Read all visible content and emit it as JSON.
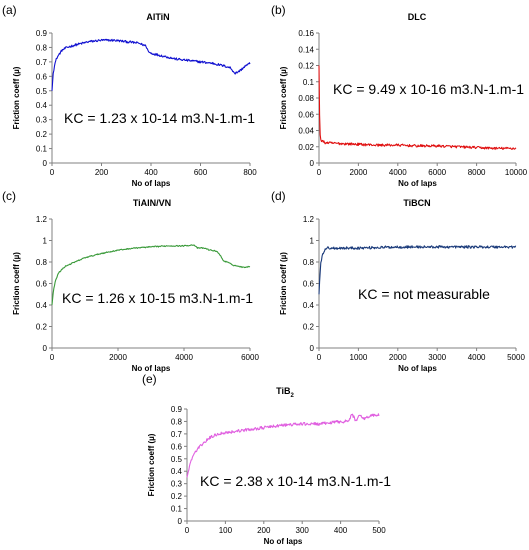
{
  "chart_data": [
    {
      "id": "a",
      "type": "line",
      "panel_label": "(a)",
      "title": "AlTiN",
      "title_sub": "",
      "xlabel": "No of laps",
      "ylabel": "Friction  coeff (µ)",
      "xlim": [
        0,
        800
      ],
      "ylim": [
        0,
        0.9
      ],
      "xticks": [
        0,
        200,
        400,
        600,
        800
      ],
      "yticks": [
        0,
        0.1,
        0.2,
        0.3,
        0.4,
        0.5,
        0.6,
        0.7,
        0.8,
        0.9
      ],
      "ytick_labels": [
        "0",
        "0.1",
        "0.2",
        "0.3",
        "0.4",
        "0.5",
        "0.6",
        "0.7",
        "0.8",
        "0.9"
      ],
      "color": "#1010d0",
      "noise": 0.008,
      "series": [
        {
          "x": [
            0,
            5,
            10,
            20,
            40,
            60,
            100,
            150,
            200,
            250,
            300,
            350,
            380,
            390,
            400,
            450,
            500,
            550,
            600,
            650,
            700,
            720,
            740,
            760,
            780,
            800
          ],
          "y": [
            0.5,
            0.62,
            0.68,
            0.73,
            0.78,
            0.8,
            0.82,
            0.84,
            0.85,
            0.85,
            0.84,
            0.83,
            0.81,
            0.77,
            0.76,
            0.74,
            0.72,
            0.71,
            0.7,
            0.69,
            0.67,
            0.66,
            0.62,
            0.64,
            0.67,
            0.69
          ]
        }
      ],
      "annotation": {
        "main": "KC = 1.23 x 10-14 m3.N-1.m-1",
        "sub": ""
      }
    },
    {
      "id": "b",
      "type": "line",
      "panel_label": "(b)",
      "title": "DLC",
      "title_sub": "",
      "xlabel": "No of laps",
      "ylabel": "Friction  coeff (µ)",
      "xlim": [
        0,
        10000
      ],
      "ylim": [
        0,
        0.16
      ],
      "xticks": [
        0,
        2000,
        4000,
        6000,
        8000,
        10000
      ],
      "yticks": [
        0,
        0.02,
        0.04,
        0.06,
        0.08,
        0.1,
        0.12,
        0.14,
        0.16
      ],
      "ytick_labels": [
        "0",
        "0.02",
        "0.04",
        "0.06",
        "0.08",
        "0.1",
        "0.12",
        "0.14",
        "0.16"
      ],
      "color": "#e01010",
      "noise": 0.0015,
      "series": [
        {
          "x": [
            0,
            30,
            60,
            100,
            300,
            1000,
            2000,
            3000,
            4000,
            5000,
            6000,
            7000,
            8000,
            9000,
            10000
          ],
          "y": [
            0.12,
            0.06,
            0.035,
            0.028,
            0.025,
            0.024,
            0.023,
            0.022,
            0.022,
            0.021,
            0.021,
            0.02,
            0.019,
            0.018,
            0.018
          ]
        }
      ],
      "annotation": {
        "main": "KC = 9.49 x 10-16 m3.N-1.m-1",
        "sub": ""
      }
    },
    {
      "id": "c",
      "type": "line",
      "panel_label": "(c)",
      "title": "TiAlN/VN",
      "title_sub": "",
      "xlabel": "No of laps",
      "ylabel": "Friction  coeff (µ)",
      "xlim": [
        0,
        6000
      ],
      "ylim": [
        0,
        1.2
      ],
      "xticks": [
        0,
        2000,
        4000,
        6000
      ],
      "yticks": [
        0,
        0.2,
        0.4,
        0.6,
        0.8,
        1,
        1.2
      ],
      "ytick_labels": [
        "0",
        "0.2",
        "0.4",
        "0.6",
        "0.8",
        "1",
        "1.2"
      ],
      "color": "#3a9a3a",
      "noise": 0.005,
      "series": [
        {
          "x": [
            0,
            50,
            100,
            200,
            400,
            700,
            1000,
            1500,
            2000,
            2500,
            3000,
            3500,
            4000,
            4300,
            4400,
            4600,
            4800,
            5000,
            5100,
            5200,
            5300,
            5500,
            5800,
            6000
          ],
          "y": [
            0.4,
            0.55,
            0.62,
            0.7,
            0.76,
            0.8,
            0.84,
            0.88,
            0.91,
            0.93,
            0.94,
            0.95,
            0.95,
            0.96,
            0.93,
            0.93,
            0.91,
            0.9,
            0.86,
            0.81,
            0.8,
            0.77,
            0.75,
            0.76
          ]
        }
      ],
      "annotation": {
        "main": "KC = 1.26 x 10-15 m3.N-1.m-1",
        "sub": ""
      }
    },
    {
      "id": "d",
      "type": "line",
      "panel_label": "(d)",
      "title": "TiBCN",
      "title_sub": "",
      "xlabel": "No of laps",
      "ylabel": "Friction  coeff (µ)",
      "xlim": [
        0,
        5000
      ],
      "ylim": [
        0,
        1.2
      ],
      "xticks": [
        0,
        1000,
        2000,
        3000,
        4000,
        5000
      ],
      "yticks": [
        0,
        0.2,
        0.4,
        0.6,
        0.8,
        1,
        1.2
      ],
      "ytick_labels": [
        "0",
        "0.2",
        "0.4",
        "0.6",
        "0.8",
        "1",
        "1.2"
      ],
      "color": "#1a3a7a",
      "noise": 0.012,
      "series": [
        {
          "x": [
            0,
            20,
            50,
            100,
            150,
            200,
            500,
            1000,
            2000,
            3000,
            4000,
            5000
          ],
          "y": [
            0.5,
            0.65,
            0.8,
            0.88,
            0.92,
            0.93,
            0.93,
            0.93,
            0.94,
            0.94,
            0.94,
            0.94
          ]
        }
      ],
      "annotation": {
        "main": "KC = not measurable",
        "sub": ""
      }
    },
    {
      "id": "e",
      "type": "line",
      "panel_label": "(e)",
      "title": "TiB",
      "title_sub": "2",
      "xlabel": "No of laps",
      "ylabel": "Friction  coeff (µ)",
      "xlim": [
        0,
        500
      ],
      "ylim": [
        0,
        0.9
      ],
      "xticks": [
        0,
        100,
        200,
        300,
        400,
        500
      ],
      "yticks": [
        0,
        0.1,
        0.2,
        0.3,
        0.4,
        0.5,
        0.6,
        0.7,
        0.8,
        0.9
      ],
      "ytick_labels": [
        "0",
        "0.1",
        "0.2",
        "0.3",
        "0.4",
        "0.5",
        "0.6",
        "0.7",
        "0.8",
        "0.9"
      ],
      "color": "#e060e0",
      "noise": 0.012,
      "series": [
        {
          "x": [
            0,
            5,
            10,
            20,
            40,
            60,
            80,
            100,
            150,
            200,
            250,
            300,
            350,
            400,
            420,
            430,
            440,
            450,
            460,
            480,
            500
          ],
          "y": [
            0.35,
            0.42,
            0.48,
            0.55,
            0.62,
            0.67,
            0.7,
            0.71,
            0.73,
            0.75,
            0.77,
            0.78,
            0.78,
            0.8,
            0.8,
            0.86,
            0.8,
            0.86,
            0.82,
            0.85,
            0.85
          ]
        }
      ],
      "annotation": {
        "main": "KC = 2.38 x 10-14 m3.N-1.m-1",
        "sub": ""
      }
    }
  ]
}
